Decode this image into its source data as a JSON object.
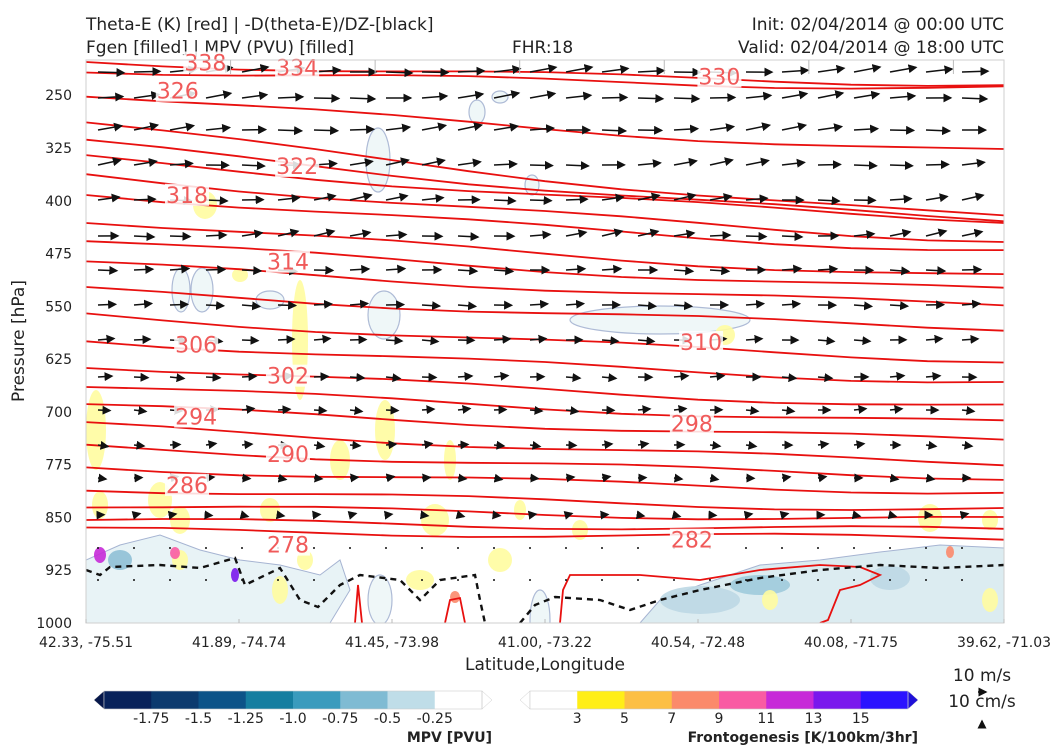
{
  "header": {
    "line1_left": "Theta-E (K) [red] | -D(theta-E)/DZ-[black]",
    "line2_left": "Fgen [filled] | MPV (PVU) [filled]",
    "fhr": "FHR:18",
    "init": "Init: 02/04/2014 @ 00:00 UTC",
    "valid": "Valid: 02/04/2014 @ 18:00 UTC"
  },
  "chart_data": {
    "type": "cross-section",
    "xlabel": "Latitude,Longitude",
    "ylabel": "Pressure [hPa]",
    "x_ticks": [
      "42.33, -75.51",
      "41.89, -74.74",
      "41.45, -73.98",
      "41.00, -73.22",
      "40.54, -72.48",
      "40.08, -71.75",
      "39.62, -71.03"
    ],
    "y_ticks": [
      250,
      325,
      400,
      475,
      550,
      625,
      700,
      775,
      850,
      925,
      1000
    ],
    "ylim": [
      1000,
      200
    ],
    "theta_e_labels": [
      {
        "value": "338",
        "x_frac": 0.13,
        "p": 205
      },
      {
        "value": "334",
        "x_frac": 0.23,
        "p": 212
      },
      {
        "value": "330",
        "x_frac": 0.69,
        "p": 225
      },
      {
        "value": "326",
        "x_frac": 0.1,
        "p": 245
      },
      {
        "value": "322",
        "x_frac": 0.23,
        "p": 352
      },
      {
        "value": "318",
        "x_frac": 0.11,
        "p": 393
      },
      {
        "value": "314",
        "x_frac": 0.22,
        "p": 488
      },
      {
        "value": "310",
        "x_frac": 0.67,
        "p": 602
      },
      {
        "value": "306",
        "x_frac": 0.12,
        "p": 606
      },
      {
        "value": "302",
        "x_frac": 0.22,
        "p": 650
      },
      {
        "value": "298",
        "x_frac": 0.66,
        "p": 718
      },
      {
        "value": "294",
        "x_frac": 0.12,
        "p": 708
      },
      {
        "value": "290",
        "x_frac": 0.22,
        "p": 761
      },
      {
        "value": "286",
        "x_frac": 0.11,
        "p": 805
      },
      {
        "value": "282",
        "x_frac": 0.66,
        "p": 883
      },
      {
        "value": "278",
        "x_frac": 0.22,
        "p": 890
      }
    ],
    "vector_ref": {
      "horizontal": "10 m/s",
      "vertical": "10 cm/s"
    },
    "mpv_colorbar": {
      "label": "MPV [PVU]",
      "ticks": [
        "-1.75",
        "-1.5",
        "-1.25",
        "-1.0",
        "-0.75",
        "-0.5",
        "-0.25"
      ],
      "colors": [
        "#08225a",
        "#0c3a6e",
        "#0d5388",
        "#167ea0",
        "#3a9bbd",
        "#7fbbd3",
        "#bfdde8",
        "#ffffff"
      ]
    },
    "fgen_colorbar": {
      "label": "Frontogenesis [K/100km/3hr]",
      "ticks": [
        "3",
        "5",
        "7",
        "9",
        "11",
        "13",
        "15"
      ],
      "colors": [
        "#ffffff",
        "#ffee17",
        "#fcbf44",
        "#fb8a6b",
        "#f95ba3",
        "#c72ad8",
        "#7a18ed",
        "#2b12ff"
      ]
    }
  }
}
